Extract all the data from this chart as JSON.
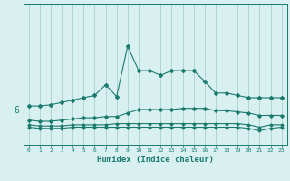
{
  "xlabel": "Humidex (Indice chaleur)",
  "x": [
    0,
    1,
    2,
    3,
    4,
    5,
    6,
    7,
    8,
    9,
    10,
    11,
    12,
    13,
    14,
    15,
    16,
    17,
    18,
    19,
    20,
    21,
    22,
    23
  ],
  "line1": [
    6.15,
    6.15,
    6.2,
    6.3,
    6.4,
    6.5,
    6.6,
    7.05,
    6.55,
    8.7,
    7.65,
    7.65,
    7.45,
    7.65,
    7.65,
    7.65,
    7.2,
    6.7,
    6.7,
    6.6,
    6.5,
    6.5,
    6.5,
    6.5
  ],
  "line2": [
    5.55,
    5.5,
    5.5,
    5.55,
    5.6,
    5.65,
    5.65,
    5.7,
    5.7,
    5.85,
    6.0,
    6.0,
    6.0,
    6.0,
    6.05,
    6.05,
    6.05,
    5.95,
    5.95,
    5.9,
    5.85,
    5.75,
    5.75,
    5.75
  ],
  "line3": [
    5.35,
    5.3,
    5.3,
    5.3,
    5.35,
    5.35,
    5.35,
    5.35,
    5.4,
    5.4,
    5.4,
    5.4,
    5.4,
    5.4,
    5.4,
    5.4,
    5.4,
    5.4,
    5.4,
    5.4,
    5.35,
    5.25,
    5.35,
    5.35
  ],
  "line4": [
    5.25,
    5.2,
    5.2,
    5.2,
    5.25,
    5.25,
    5.25,
    5.25,
    5.25,
    5.25,
    5.25,
    5.25,
    5.25,
    5.25,
    5.25,
    5.25,
    5.25,
    5.25,
    5.25,
    5.25,
    5.2,
    5.1,
    5.2,
    5.25
  ],
  "line_color": "#1a7a6e",
  "bg_color": "#d8f0f0",
  "grid_color": "#aacfcf",
  "ytick_label": "6",
  "ytick_value": 6.0,
  "ylim": [
    4.5,
    10.5
  ],
  "xlim": [
    -0.5,
    23.5
  ]
}
